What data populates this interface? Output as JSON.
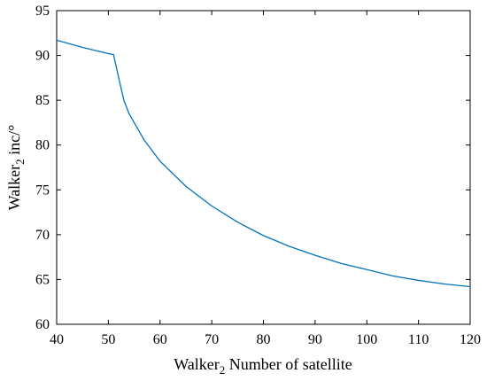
{
  "chart_data": {
    "type": "line",
    "title": "",
    "xlabel": {
      "main": "Walker",
      "subscript": "2",
      "rest": " Number of satellite"
    },
    "ylabel": {
      "main": "Walker",
      "subscript": "2",
      "rest": " inc/°"
    },
    "xlim": [
      40,
      120
    ],
    "ylim": [
      60,
      95
    ],
    "xticks": [
      40,
      50,
      60,
      70,
      80,
      90,
      100,
      110,
      120
    ],
    "yticks": [
      60,
      65,
      70,
      75,
      80,
      85,
      90,
      95
    ],
    "grid": false,
    "legend": "none",
    "series": [
      {
        "color": "#0072BD",
        "x": [
          40,
          45,
          50,
          51,
          52,
          53,
          54,
          55,
          57,
          60,
          65,
          70,
          75,
          80,
          85,
          90,
          95,
          100,
          105,
          110,
          115,
          120
        ],
        "y": [
          91.7,
          90.9,
          90.2,
          90.1,
          87.5,
          85.0,
          83.5,
          82.5,
          80.5,
          78.2,
          75.4,
          73.2,
          71.4,
          69.9,
          68.7,
          67.7,
          66.8,
          66.1,
          65.4,
          64.9,
          64.5,
          64.2
        ]
      }
    ]
  }
}
